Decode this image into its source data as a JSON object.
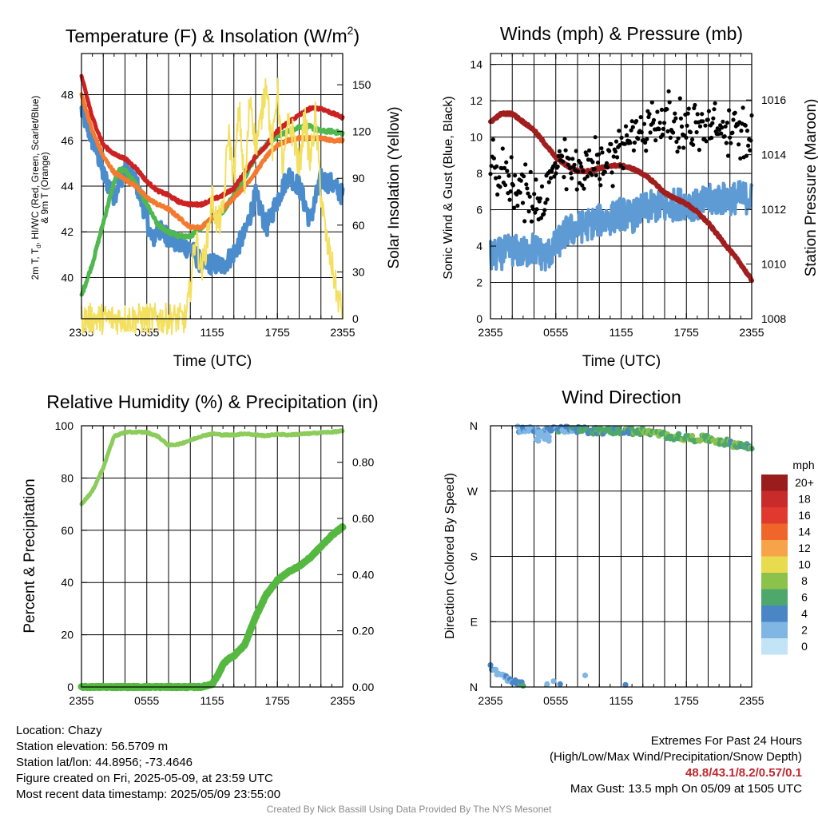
{
  "colors": {
    "temp_red": "#cc2222",
    "dewpoint_orange": "#f47a30",
    "heat_index_green": "#4fb84f",
    "nine_m_blue": "#4a8ccc",
    "solar_yellow": "#f4e060",
    "wind_blue": "#5e9ad3",
    "gust_black": "#000000",
    "pressure_maroon": "#a01e1e",
    "rh_green": "#8ccc5a",
    "precip_green": "#55b840"
  },
  "chart_data": [
    {
      "id": "temperature",
      "type": "line",
      "title": "Temperature (F) & Insolation (W/m",
      "title_superscript": "2",
      "title_close": ")",
      "xlabel": "Time (UTC)",
      "ylabel_left_lines": [
        "2m T, T",
        "d",
        ", HI/WC (Red, Green, Scarlet/Blue)",
        "& 9m T (Orange)"
      ],
      "ylabel_right": "Solar Insolation (Yellow)",
      "x_ticks": [
        "2355",
        "0555",
        "1155",
        "1755",
        "2355"
      ],
      "x_range": [
        0,
        24
      ],
      "ylim_left": [
        38.2,
        49.8
      ],
      "ylim_right": [
        0,
        170
      ],
      "y_ticks_left": [
        40,
        42,
        44,
        46,
        48
      ],
      "y_ticks_right": [
        0,
        30,
        60,
        90,
        120,
        150
      ],
      "grid": true,
      "series": [
        {
          "key": "nine_m_blue",
          "width": 5,
          "noise": 0.45,
          "x": [
            0,
            1,
            1.5,
            2,
            3,
            4,
            5,
            6,
            6.5,
            7,
            8,
            9,
            10,
            11,
            12,
            13,
            14,
            15,
            16,
            17,
            18,
            19,
            20,
            21,
            22,
            23,
            24
          ],
          "y": [
            47.3,
            46.0,
            45.4,
            44.5,
            43.6,
            44.8,
            44.2,
            42.6,
            41.6,
            42.1,
            41.8,
            41.4,
            41.3,
            40.6,
            40.6,
            40.5,
            41.1,
            41.9,
            43.6,
            42.2,
            43.4,
            44.5,
            44.0,
            42.5,
            44.3,
            44.1,
            43.6
          ]
        },
        {
          "key": "heat_index_green",
          "width": 5,
          "noise": 0.08,
          "x": [
            0,
            1,
            2,
            3,
            3.5,
            4,
            5,
            6,
            7,
            8,
            9,
            10,
            11,
            12,
            13,
            14,
            15,
            16,
            17,
            18,
            19,
            20,
            21,
            22,
            23,
            24
          ],
          "y": [
            39.2,
            40.6,
            42.4,
            44.2,
            44.7,
            44.7,
            44.1,
            43.2,
            42.3,
            42.0,
            41.8,
            41.8,
            42.2,
            42.6,
            42.9,
            43.6,
            44.4,
            45.3,
            45.8,
            46.2,
            46.4,
            46.6,
            46.6,
            46.4,
            46.4,
            46.3
          ]
        },
        {
          "key": "dewpoint_orange",
          "width": 5,
          "noise": 0.06,
          "x": [
            0,
            1,
            2,
            3,
            4,
            5,
            6,
            7,
            8,
            9,
            10,
            11,
            12,
            13,
            14,
            15,
            16,
            17,
            18,
            19,
            20,
            21,
            22,
            23,
            24
          ],
          "y": [
            48.0,
            46.4,
            45.3,
            44.6,
            44.3,
            44.0,
            43.5,
            43.2,
            43.0,
            42.6,
            42.2,
            42.2,
            42.6,
            43.0,
            43.5,
            44.0,
            44.6,
            45.3,
            45.8,
            46.0,
            46.1,
            46.1,
            46.1,
            46.0,
            46.0
          ]
        },
        {
          "key": "temp_red",
          "width": 5,
          "noise": 0.06,
          "x": [
            0,
            1,
            2,
            3,
            4,
            5,
            6,
            7,
            8,
            9,
            10,
            11,
            12,
            13,
            14,
            15,
            16,
            17,
            18,
            19,
            20,
            21,
            22,
            23,
            24
          ],
          "y": [
            48.8,
            47.0,
            45.8,
            45.4,
            45.2,
            44.8,
            44.2,
            43.8,
            43.6,
            43.3,
            43.2,
            43.2,
            43.4,
            43.6,
            43.9,
            44.6,
            45.3,
            45.8,
            46.4,
            46.8,
            47.1,
            47.4,
            47.4,
            47.2,
            47.0
          ]
        },
        {
          "key": "solar_yellow",
          "axis": "right",
          "width": 2,
          "noise": 10,
          "x": [
            0,
            1,
            2,
            3,
            4,
            5,
            6,
            7,
            8,
            9,
            9.6,
            10,
            10.5,
            11,
            11.5,
            12,
            12.5,
            13,
            13.5,
            14,
            14.5,
            15,
            15.5,
            16,
            16.5,
            17,
            17.5,
            18,
            18.5,
            19,
            19.5,
            20,
            20.5,
            21,
            21.5,
            22,
            22.5,
            23,
            23.5,
            24
          ],
          "y": [
            0,
            0,
            0,
            0,
            0,
            0,
            0,
            0,
            0,
            0,
            0,
            20,
            55,
            30,
            48,
            78,
            60,
            68,
            120,
            90,
            135,
            80,
            145,
            110,
            128,
            155,
            105,
            150,
            95,
            125,
            118,
            95,
            130,
            100,
            130,
            80,
            50,
            35,
            15,
            5
          ]
        }
      ]
    },
    {
      "id": "winds",
      "type": "scatter",
      "title": "Winds (mph) & Pressure (mb)",
      "xlabel": "Time (UTC)",
      "ylabel": "Sonic Wind & Gust (Blue, Black)",
      "ylabel_right": "Station Pressure (Maroon)",
      "x_ticks": [
        "2355",
        "0555",
        "1155",
        "1755",
        "2355"
      ],
      "x_range": [
        0,
        24
      ],
      "ylim_left": [
        0,
        14.6
      ],
      "ylim_right": [
        1008,
        1017.7
      ],
      "y_ticks_left": [
        0,
        2,
        4,
        6,
        8,
        10,
        12,
        14
      ],
      "y_ticks_right": [
        1008,
        1010,
        1012,
        1014,
        1016
      ],
      "grid": true,
      "wind": {
        "key": "wind_blue",
        "width": 4,
        "noise": 0.9,
        "x": [
          0,
          1,
          2,
          3,
          4,
          5,
          6,
          7,
          8,
          9,
          10,
          11,
          12,
          13,
          14,
          15,
          16,
          17,
          18,
          19,
          20,
          21,
          22,
          23,
          24
        ],
        "y": [
          3.4,
          3.6,
          3.8,
          3.6,
          3.9,
          3.4,
          4.0,
          4.8,
          5.0,
          5.2,
          5.4,
          5.5,
          5.8,
          5.6,
          6.0,
          6.2,
          6.1,
          6.3,
          6.4,
          6.2,
          6.5,
          6.6,
          6.6,
          6.7,
          6.6
        ]
      },
      "gust": {
        "key": "gust_black",
        "x_start": 0,
        "x_end": 24,
        "count": 300,
        "x": [
          0,
          2,
          4,
          5,
          6,
          8,
          10,
          12,
          14,
          16,
          18,
          20,
          22,
          24
        ],
        "y": [
          8.3,
          7.6,
          6.5,
          6.6,
          8.5,
          8.2,
          8.5,
          9.4,
          10.6,
          10.9,
          10.6,
          10.4,
          10.3,
          10.1
        ],
        "spread": 1.3
      },
      "pressure": {
        "key": "pressure_maroon",
        "width": 6,
        "x": [
          0,
          1,
          2,
          3,
          4,
          5,
          6,
          7,
          8,
          9,
          10,
          11,
          12,
          13,
          14,
          15,
          16,
          17,
          18,
          19,
          20,
          21,
          22,
          23,
          24
        ],
        "y": [
          1015.2,
          1015.5,
          1015.5,
          1015.2,
          1014.9,
          1014.4,
          1013.9,
          1013.6,
          1013.4,
          1013.4,
          1013.5,
          1013.6,
          1013.6,
          1013.5,
          1013.3,
          1013.0,
          1012.6,
          1012.4,
          1012.2,
          1011.9,
          1011.5,
          1011.0,
          1010.5,
          1010.0,
          1009.4
        ]
      }
    },
    {
      "id": "humidity",
      "type": "area",
      "title": "Relative Humidity (%) & Precipitation (in)",
      "ylabel": "Percent & Precipitation",
      "x_ticks": [
        "2355",
        "0555",
        "1155",
        "1755",
        "2355"
      ],
      "x_range": [
        0,
        24
      ],
      "ylim_left": [
        0,
        100
      ],
      "ylim_right": [
        0,
        0.93
      ],
      "y_ticks_left": [
        0,
        20,
        40,
        60,
        80,
        100
      ],
      "y_ticks_right": [
        "0.00",
        "0.20",
        "0.40",
        "0.60",
        "0.80"
      ],
      "y_ticks_right_values": [
        0,
        0.2,
        0.4,
        0.6,
        0.8
      ],
      "grid": true,
      "rh": {
        "key": "rh_green",
        "width": 5,
        "x": [
          0,
          1,
          2,
          3,
          4,
          5,
          6,
          7,
          8,
          9,
          10,
          11,
          12,
          13,
          14,
          15,
          16,
          17,
          18,
          19,
          20,
          21,
          22,
          23,
          24
        ],
        "y": [
          70,
          75,
          84,
          96,
          97.5,
          97.6,
          97.5,
          96,
          92.5,
          93,
          94.5,
          96,
          97,
          96.5,
          96.5,
          97,
          96.5,
          96.2,
          96.8,
          96.5,
          96.8,
          97,
          97.4,
          97.6,
          98
        ]
      },
      "precip": {
        "key": "precip_green",
        "width": 9,
        "x": [
          0,
          1,
          2,
          3,
          4,
          5,
          6,
          7,
          8,
          9,
          10,
          11,
          12,
          12.5,
          13,
          13.5,
          14,
          15,
          16,
          17,
          18,
          19,
          20,
          21,
          22,
          23,
          24
        ],
        "y": [
          0,
          0,
          0,
          0,
          0,
          0,
          0,
          0,
          0,
          0,
          0,
          0,
          0.01,
          0.04,
          0.08,
          0.1,
          0.11,
          0.15,
          0.25,
          0.33,
          0.38,
          0.41,
          0.43,
          0.46,
          0.5,
          0.54,
          0.57
        ]
      }
    },
    {
      "id": "direction",
      "type": "scatter",
      "title": "Wind Direction",
      "ylabel": "Direction (Colored By Speed)",
      "x_ticks": [
        "2355",
        "0555",
        "1155",
        "1755",
        "2355"
      ],
      "x_range": [
        0,
        24
      ],
      "ylim": [
        0,
        360
      ],
      "y_ticks": [
        "N",
        "E",
        "S",
        "W",
        "N"
      ],
      "y_ticks_values": [
        0,
        90,
        180,
        270,
        360
      ],
      "grid": true,
      "legend": {
        "title": "mph",
        "labels": [
          "20+",
          "18",
          "16",
          "14",
          "12",
          "10",
          "8",
          "6",
          "4",
          "2",
          "0"
        ],
        "colors": [
          "#9b1c1c",
          "#c92a2a",
          "#e03a2f",
          "#f0652a",
          "#f7a34a",
          "#e8dc4e",
          "#8cc24c",
          "#4ea86b",
          "#4a86c6",
          "#7fb6e4",
          "#c3e3f6"
        ]
      },
      "upper_band": {
        "x": [
          2.5,
          4,
          6,
          8,
          10,
          12,
          14,
          16,
          18,
          20,
          22,
          24
        ],
        "dir": [
          356,
          354,
          355,
          354,
          353,
          353,
          352,
          347,
          343,
          342,
          336,
          330
        ],
        "speed": [
          3.5,
          2.5,
          4,
          4.5,
          6,
          5.5,
          6.5,
          7,
          6.5,
          6.5,
          6,
          6
        ]
      },
      "lower_band": {
        "x": [
          0,
          0.6,
          1.2,
          1.8,
          2.4,
          3.0
        ],
        "dir": [
          28,
          20,
          14,
          9,
          6,
          4
        ],
        "speed": [
          3.5,
          3,
          2.5,
          3,
          4,
          5
        ]
      },
      "lower_sparse": [
        [
          5.2,
          4,
          2
        ],
        [
          5.8,
          8,
          2
        ],
        [
          6.4,
          4,
          3
        ],
        [
          8.7,
          16,
          2
        ],
        [
          12.4,
          3,
          4
        ]
      ]
    }
  ],
  "info": {
    "location": "Location: Chazy",
    "elevation": "Station elevation: 56.5709 m",
    "latlon": "Station lat/lon: 44.8956; -73.4646",
    "created": "Figure created on Fri, 2025-05-09, at 23:59 UTC",
    "recent": "Most recent data timestamp: 2025/05/09 23:55:00",
    "extremes_title": "Extremes For Past 24 Hours",
    "extremes_sub": "(High/Low/Max Wind/Precipitation/Snow Depth)",
    "extremes_values": "48.8/43.1/8.2/0.57/0.1",
    "max_gust": "Max Gust: 13.5 mph On 05/09 at 1505 UTC",
    "credit": "Created By Nick Bassill Using Data Provided By The NYS Mesonet"
  }
}
